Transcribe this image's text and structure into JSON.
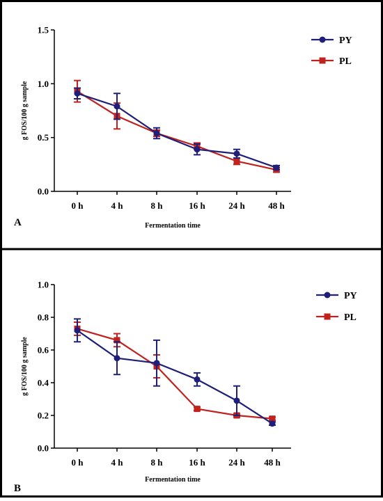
{
  "chart_data": [
    {
      "type": "line",
      "panel_label": "A",
      "categories": [
        "0 h",
        "4 h",
        "8 h",
        "16 h",
        "24 h",
        "48 h"
      ],
      "xlabel": "Fermentation time",
      "ylabel": "g FOS/100 g sample",
      "ylim": [
        0,
        1.5
      ],
      "yticks": [
        "0.0",
        "0.5",
        "1.0",
        "1.5"
      ],
      "legend_position": "top-right",
      "grid": false,
      "series": [
        {
          "name": "PY",
          "color": "#1f1f7a",
          "marker": "circle",
          "values": [
            0.91,
            0.79,
            0.54,
            0.39,
            0.35,
            0.22
          ],
          "errors": [
            0.05,
            0.12,
            0.05,
            0.05,
            0.04,
            0.02
          ]
        },
        {
          "name": "PL",
          "color": "#c0221e",
          "marker": "square",
          "values": [
            0.93,
            0.7,
            0.54,
            0.42,
            0.28,
            0.2
          ],
          "errors": [
            0.1,
            0.12,
            0.03,
            0.03,
            0.03,
            0.02
          ]
        }
      ]
    },
    {
      "type": "line",
      "panel_label": "B",
      "categories": [
        "0 h",
        "4 h",
        "8 h",
        "16 h",
        "24 h",
        "48 h"
      ],
      "xlabel": "Fermentation time",
      "ylabel": "g FOS/100 g sample",
      "ylim": [
        0,
        1.0
      ],
      "yticks": [
        "0.0",
        "0.2",
        "0.4",
        "0.6",
        "0.8",
        "1.0"
      ],
      "legend_position": "top-right",
      "grid": false,
      "series": [
        {
          "name": "PY",
          "color": "#1f1f7a",
          "marker": "circle",
          "values": [
            0.72,
            0.55,
            0.52,
            0.42,
            0.29,
            0.15
          ],
          "errors": [
            0.07,
            0.1,
            0.14,
            0.04,
            0.09,
            0.01
          ]
        },
        {
          "name": "PL",
          "color": "#c0221e",
          "marker": "square",
          "values": [
            0.73,
            0.66,
            0.5,
            0.24,
            0.2,
            0.18
          ],
          "errors": [
            0.04,
            0.04,
            0.07,
            0.01,
            0.01,
            0.01
          ]
        }
      ]
    }
  ]
}
